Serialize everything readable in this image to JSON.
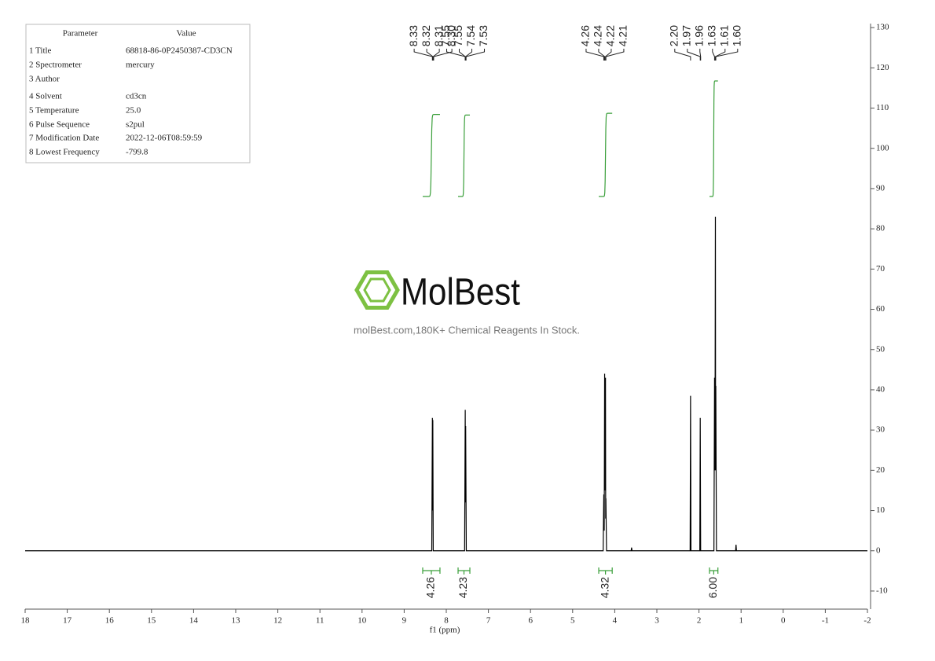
{
  "parameters": {
    "header": [
      "Parameter",
      "Value"
    ],
    "rows": [
      [
        "1 Title",
        "68818-86-0P2450387-CD3CN"
      ],
      [
        "2 Spectrometer",
        "mercury"
      ],
      [
        "3 Author"
      ],
      [
        "4 Solvent",
        "cd3cn"
      ],
      [
        "5 Temperature",
        "25.0"
      ],
      [
        "6 Pulse Sequence",
        "s2pul"
      ],
      [
        "7 Modification Date",
        "2022-12-06T08:59:59"
      ],
      [
        "8 Lowest Frequency",
        "-799.8"
      ]
    ]
  },
  "watermark": {
    "logo": "MolBest",
    "text": "molBest.com,180K+ Chemical Reagents In Stock."
  },
  "chart_data": {
    "type": "nmr",
    "x_label": "f1 (ppm)",
    "xlim": [
      18,
      -2
    ],
    "xticks": [
      18,
      17,
      16,
      15,
      14,
      13,
      12,
      11,
      10,
      9,
      8,
      7,
      6,
      5,
      4,
      3,
      2,
      1,
      0,
      -1,
      -2
    ],
    "ylim": [
      -14.5,
      131
    ],
    "yticks": [
      -10,
      0,
      10,
      20,
      30,
      40,
      50,
      60,
      70,
      80,
      90,
      100,
      110,
      120,
      130
    ],
    "x": [
      18,
      8.345,
      8.33,
      8.325,
      8.32,
      8.31,
      7.565,
      7.55,
      7.545,
      7.54,
      7.525,
      4.275,
      4.26,
      4.25,
      4.24,
      4.23,
      4.22,
      4.215,
      4.21,
      4.195,
      3.61,
      3.6,
      3.59,
      2.21,
      2.2,
      2.19,
      1.98,
      1.97,
      1.96,
      1.645,
      1.63,
      1.62,
      1.61,
      1.605,
      1.6,
      1.585,
      1.13,
      1.12,
      1.11,
      -2
    ],
    "series": [
      {
        "color": "#000000",
        "values": [
          0,
          0,
          33,
          10,
          32.5,
          0,
          0,
          35,
          12,
          31,
          0,
          0,
          14,
          5,
          44,
          15,
          43,
          8,
          13,
          0,
          0,
          0.8,
          0,
          0,
          38.5,
          0,
          0,
          33,
          0,
          0,
          43,
          20,
          83,
          20,
          41,
          0,
          0,
          1.5,
          0,
          0
        ]
      }
    ],
    "peaks": [
      8.33,
      8.32,
      8.31,
      {
        "value": 8.3,
        "label": "8.30"
      },
      7.55,
      7.55,
      7.54,
      7.53,
      4.26,
      4.24,
      4.22,
      4.21,
      {
        "value": 2.2,
        "label": "2.20"
      },
      1.97,
      1.96,
      1.63,
      1.61,
      {
        "value": 1.6,
        "label": "1.60"
      }
    ],
    "integral_color": "#3a9f3a",
    "integrals": [
      {
        "range": [
          8.56,
          8.15
        ],
        "value": 4.26
      },
      {
        "range": [
          7.72,
          7.44
        ],
        "value": 4.23
      },
      {
        "range": [
          4.38,
          4.06
        ],
        "value": 4.32
      },
      {
        "range": [
          1.75,
          1.55
        ],
        "value": {
          "value": 6,
          "label": "6.00"
        }
      }
    ]
  }
}
